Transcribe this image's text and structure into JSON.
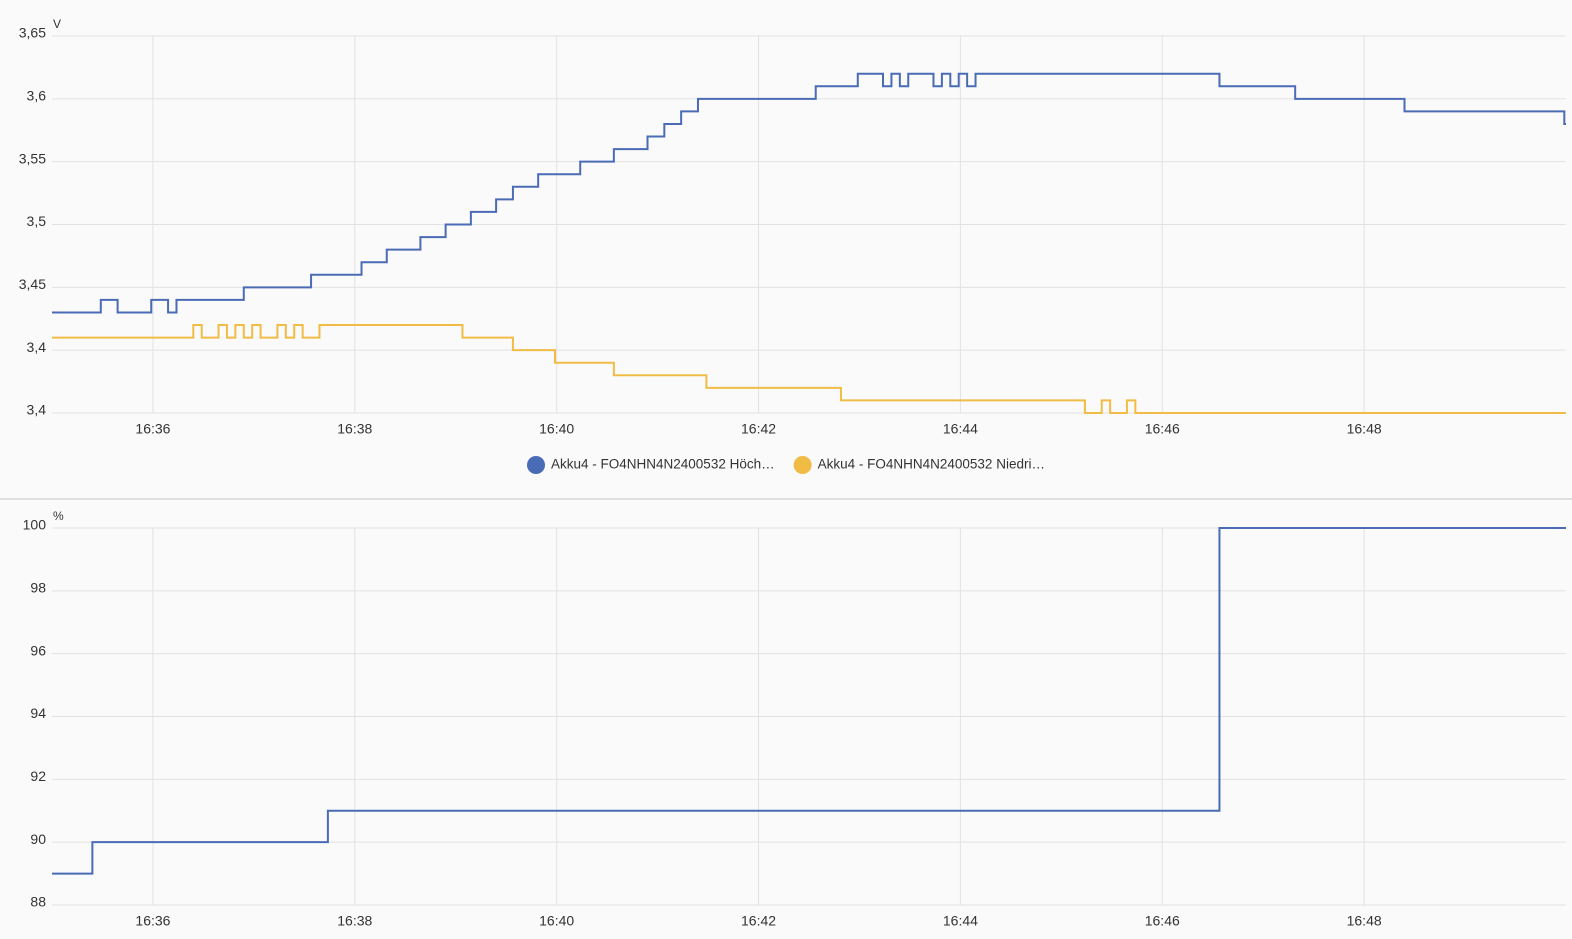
{
  "chart_data": [
    {
      "type": "step-line",
      "ylabel": "V",
      "xlim": [
        "16:35",
        "16:50"
      ],
      "xticks": [
        "16:36",
        "16:38",
        "16:40",
        "16:42",
        "16:44",
        "16:46",
        "16:48"
      ],
      "ylim": [
        3.35,
        3.65
      ],
      "yticks": [
        {
          "value": 3.35,
          "label": "3,4"
        },
        {
          "value": 3.4,
          "label": "3,4"
        },
        {
          "value": 3.45,
          "label": "3,45"
        },
        {
          "value": 3.5,
          "label": "3,5"
        },
        {
          "value": 3.55,
          "label": "3,55"
        },
        {
          "value": 3.6,
          "label": "3,6"
        },
        {
          "value": 3.65,
          "label": "3,65"
        }
      ],
      "grid": true,
      "legend": "bottom",
      "series": [
        {
          "name": "Akku4 - FO4NHN4N2400532 Höch…",
          "color": "#4a6bb5",
          "x": [
            "16:35:00",
            "16:35:29",
            "16:35:39",
            "16:35:59",
            "16:36:09",
            "16:36:14",
            "16:36:54",
            "16:37:34",
            "16:38:04",
            "16:38:19",
            "16:38:39",
            "16:38:54",
            "16:39:09",
            "16:39:24",
            "16:39:34",
            "16:39:49",
            "16:40:14",
            "16:40:34",
            "16:40:54",
            "16:41:04",
            "16:41:14",
            "16:41:24",
            "16:42:34",
            "16:42:59",
            "16:43:14",
            "16:43:19",
            "16:43:24",
            "16:43:29",
            "16:43:44",
            "16:43:49",
            "16:43:54",
            "16:43:59",
            "16:44:04",
            "16:44:09",
            "16:46:34",
            "16:47:19",
            "16:48:24",
            "16:49:59"
          ],
          "values": [
            3.43,
            3.44,
            3.43,
            3.44,
            3.43,
            3.44,
            3.45,
            3.46,
            3.47,
            3.48,
            3.49,
            3.5,
            3.51,
            3.52,
            3.53,
            3.54,
            3.55,
            3.56,
            3.57,
            3.58,
            3.59,
            3.6,
            3.61,
            3.62,
            3.61,
            3.62,
            3.61,
            3.62,
            3.61,
            3.62,
            3.61,
            3.62,
            3.61,
            3.62,
            3.61,
            3.6,
            3.59,
            3.58
          ]
        },
        {
          "name": "Akku4 - FO4NHN4N2400532 Niedri…",
          "color": "#f1bc46",
          "x": [
            "16:35:00",
            "16:36:24",
            "16:36:29",
            "16:36:39",
            "16:36:44",
            "16:36:49",
            "16:36:54",
            "16:36:59",
            "16:37:04",
            "16:37:14",
            "16:37:19",
            "16:37:24",
            "16:37:29",
            "16:37:39",
            "16:39:04",
            "16:39:34",
            "16:39:59",
            "16:40:34",
            "16:41:29",
            "16:42:49",
            "16:45:14",
            "16:45:24",
            "16:45:29",
            "16:45:39",
            "16:45:44"
          ],
          "values": [
            3.41,
            3.42,
            3.41,
            3.42,
            3.41,
            3.42,
            3.41,
            3.42,
            3.41,
            3.42,
            3.41,
            3.42,
            3.41,
            3.42,
            3.41,
            3.4,
            3.39,
            3.38,
            3.37,
            3.36,
            3.35,
            3.36,
            3.35,
            3.36,
            3.35
          ]
        }
      ]
    },
    {
      "type": "step-line",
      "ylabel": "%",
      "xlim": [
        "16:35",
        "16:50"
      ],
      "xticks": [
        "16:36",
        "16:38",
        "16:40",
        "16:42",
        "16:44",
        "16:46",
        "16:48"
      ],
      "ylim": [
        88,
        100
      ],
      "yticks": [
        88,
        90,
        92,
        94,
        96,
        98,
        100
      ],
      "grid": true,
      "series": [
        {
          "color": "#4a6bb5",
          "x": [
            "16:35:00",
            "16:35:24",
            "16:37:44",
            "16:46:34"
          ],
          "values": [
            89,
            90,
            91,
            100
          ]
        }
      ]
    }
  ]
}
